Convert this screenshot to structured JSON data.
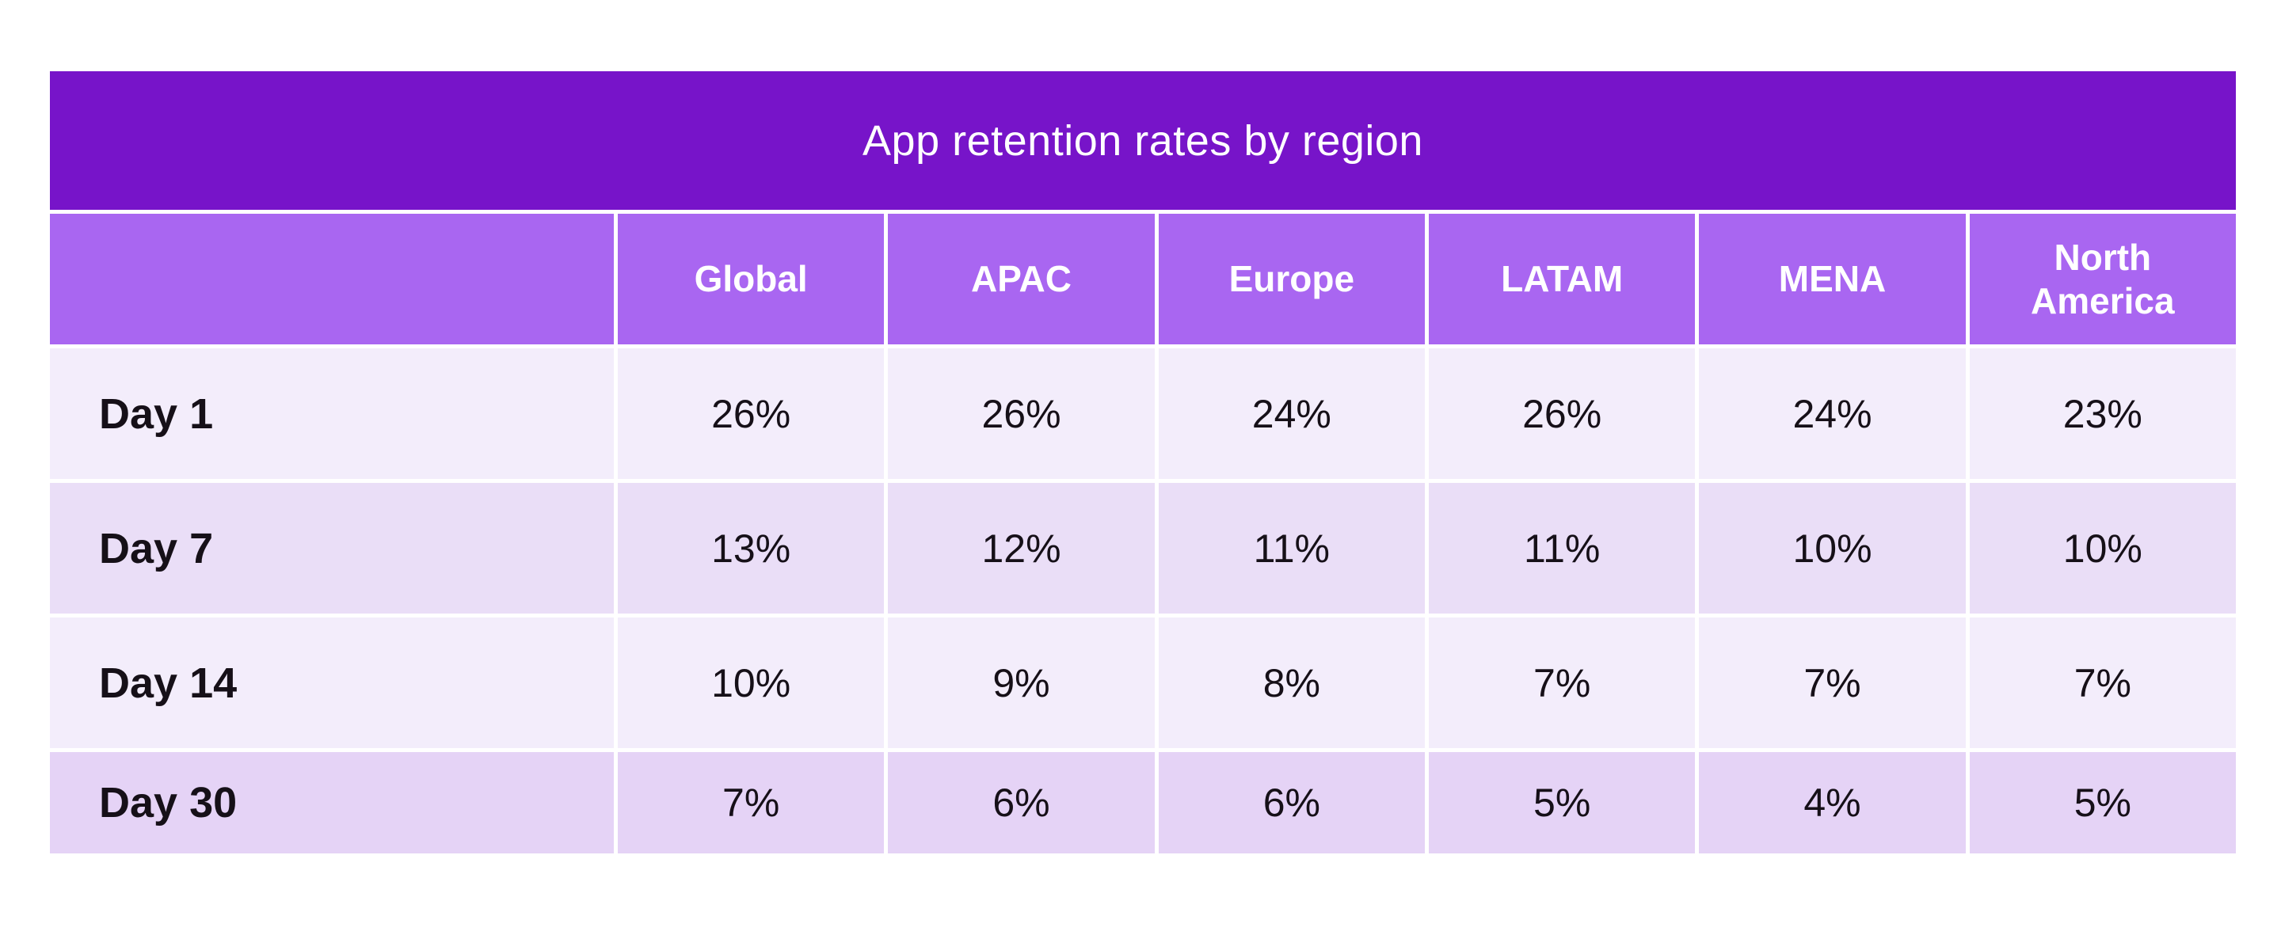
{
  "table": {
    "title": "App retention rates by region",
    "columns": [
      "Global",
      "APAC",
      "Europe",
      "LATAM",
      "MENA",
      "North America"
    ],
    "rows": [
      {
        "label": "Day 1",
        "values": [
          "26%",
          "26%",
          "24%",
          "26%",
          "24%",
          "23%"
        ]
      },
      {
        "label": "Day 7",
        "values": [
          "13%",
          "12%",
          "11%",
          "11%",
          "10%",
          "10%"
        ]
      },
      {
        "label": "Day 14",
        "values": [
          "10%",
          "9%",
          "8%",
          "7%",
          "7%",
          "7%"
        ]
      },
      {
        "label": "Day 30",
        "values": [
          "7%",
          "6%",
          "6%",
          "5%",
          "4%",
          "5%"
        ]
      }
    ]
  },
  "palette": {
    "title-bg": "#7714c9",
    "header-bg": "#a966f1",
    "row-light": "#f3edfb",
    "row-medium": "#eadef7",
    "row-dark": "#e5d3f6",
    "text-dark": "#161018",
    "text-light": "#ffffff"
  },
  "chart_data": {
    "type": "table",
    "title": "App retention rates by region",
    "columns": [
      "Global",
      "APAC",
      "Europe",
      "LATAM",
      "MENA",
      "North America"
    ],
    "row_labels": [
      "Day 1",
      "Day 7",
      "Day 14",
      "Day 30"
    ],
    "values_percent": [
      [
        26,
        26,
        24,
        26,
        24,
        23
      ],
      [
        13,
        12,
        11,
        11,
        10,
        10
      ],
      [
        10,
        9,
        8,
        7,
        7,
        7
      ],
      [
        7,
        6,
        6,
        5,
        4,
        5
      ]
    ],
    "unit": "%",
    "layout": "rows are retention checkpoints, columns are regions, white gridlines, purple header theme"
  }
}
